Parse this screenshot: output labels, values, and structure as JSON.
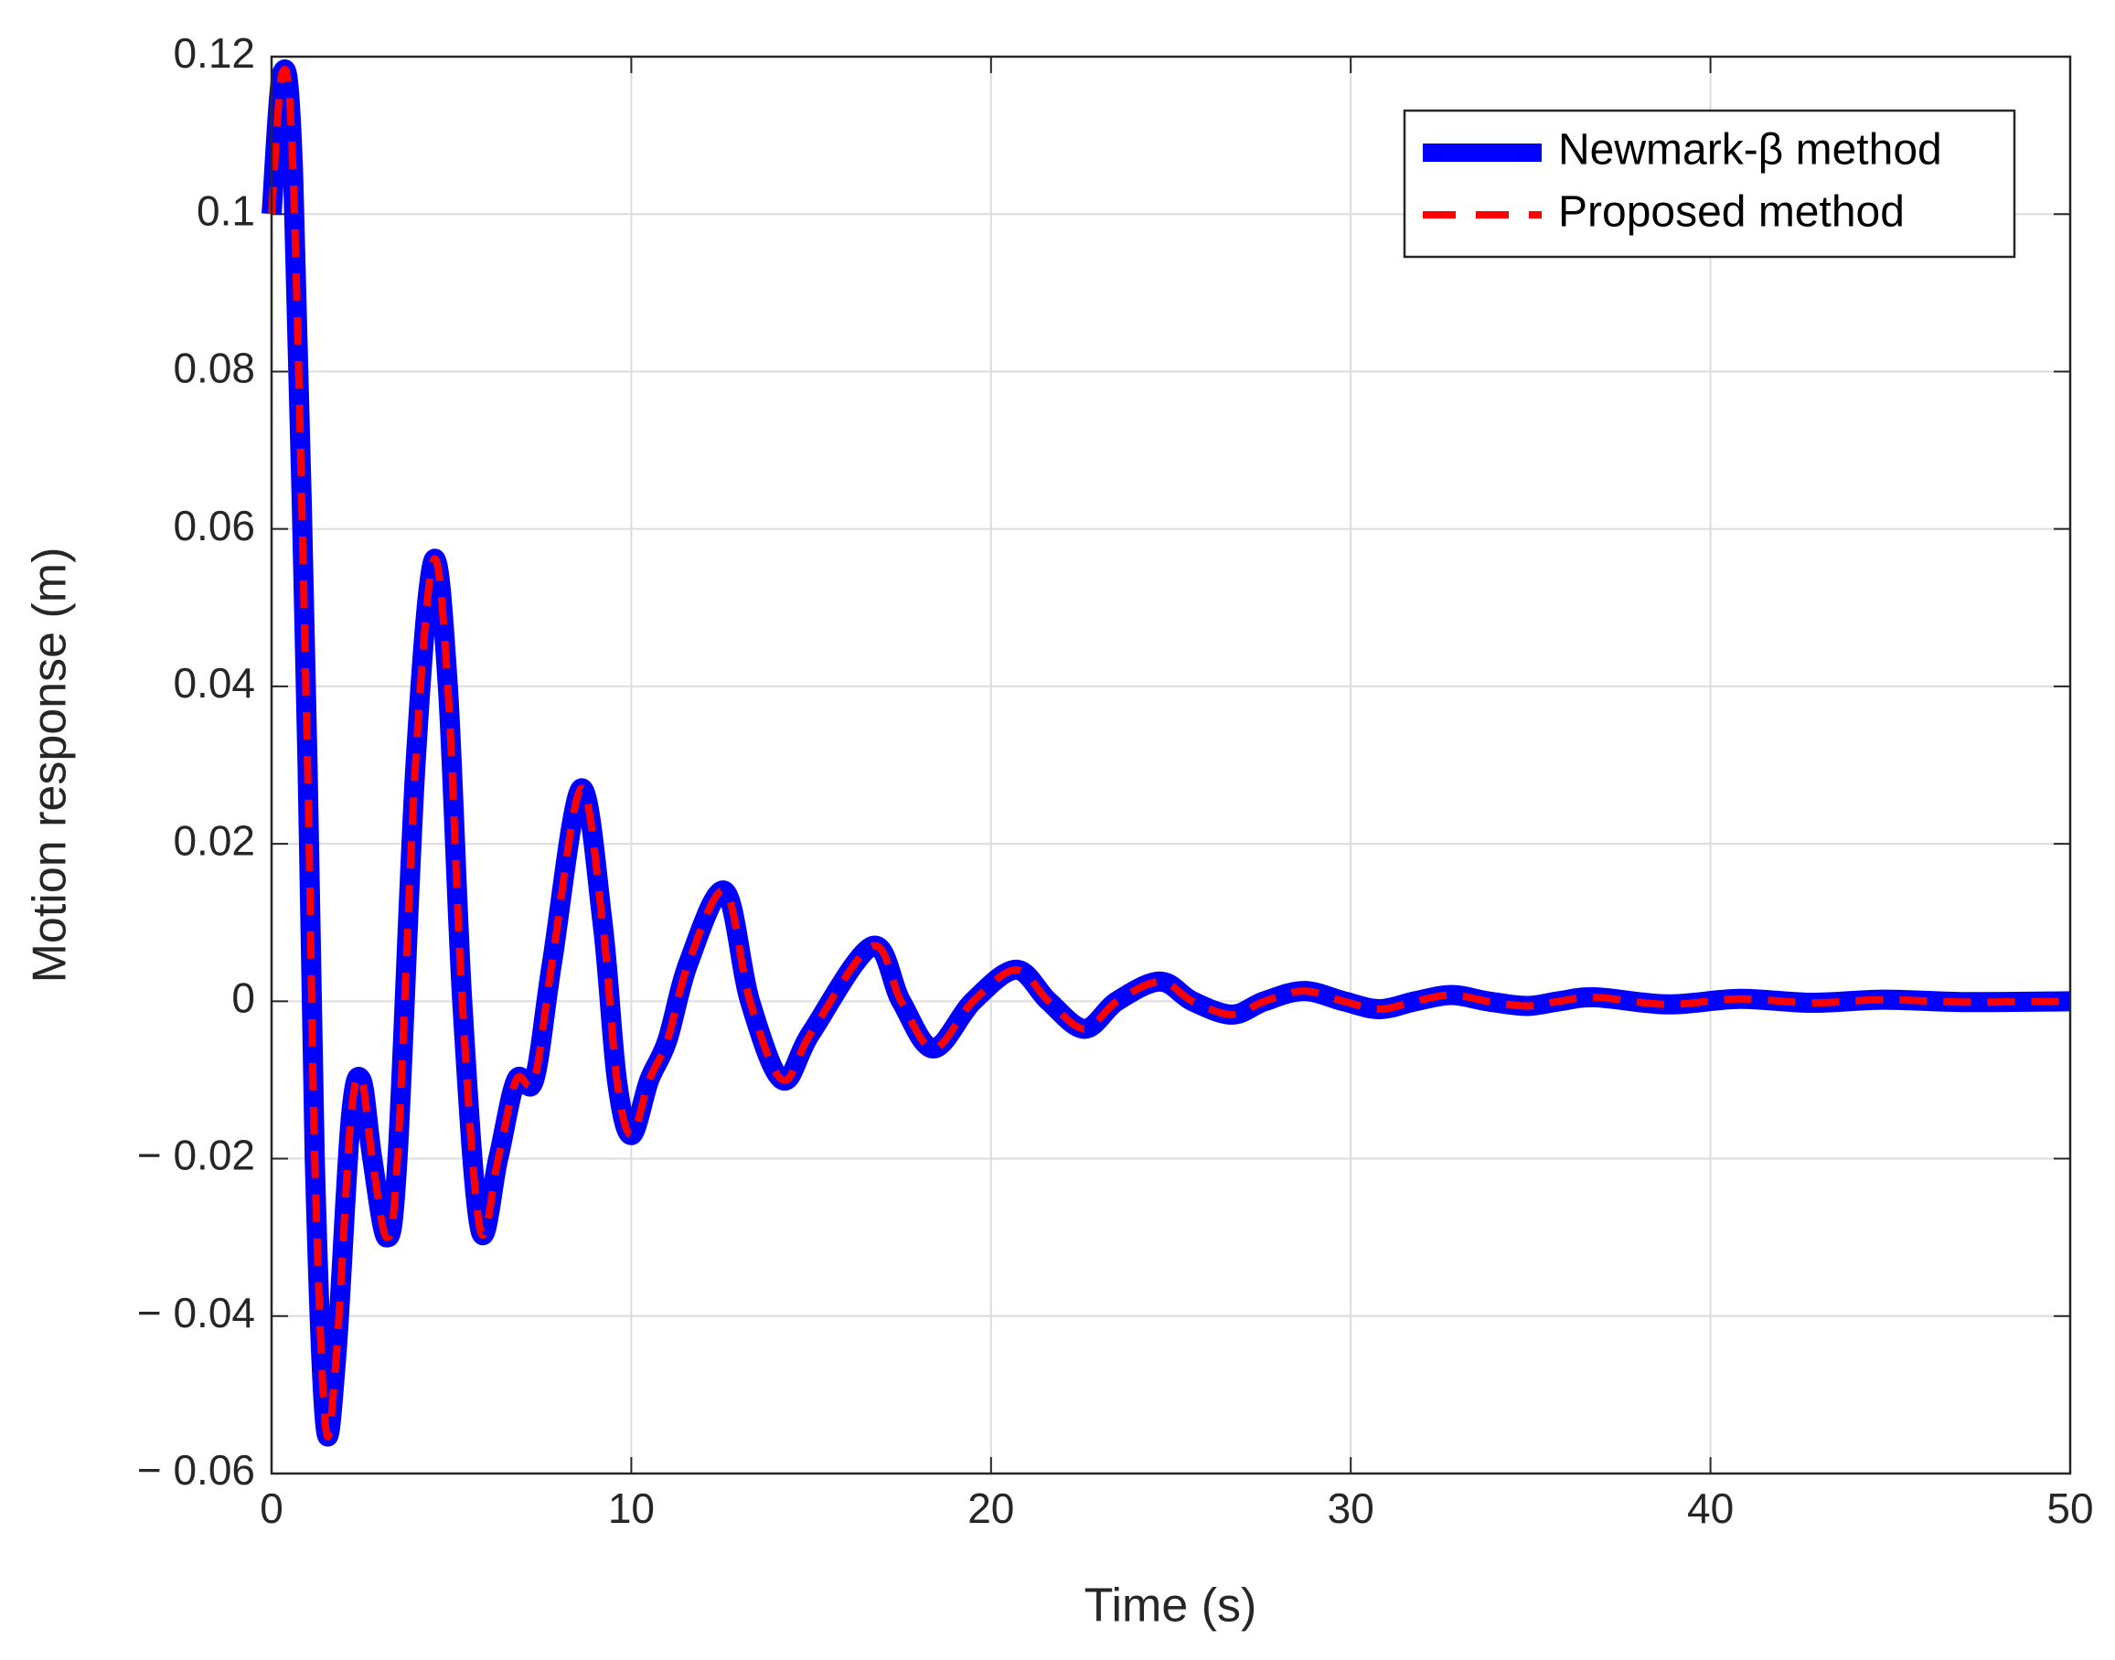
{
  "chart_data": {
    "type": "line",
    "xlabel": "Time (s)",
    "ylabel": "Motion response (m)",
    "x": [
      0,
      0.3,
      0.6,
      1.0,
      1.2,
      1.5,
      1.8,
      2.2,
      2.5,
      2.8,
      3.2,
      3.5,
      4.0,
      4.5,
      4.9,
      5.3,
      5.8,
      6.3,
      6.8,
      7.3,
      7.8,
      8.6,
      9.2,
      9.6,
      10.0,
      10.5,
      11.0,
      11.6,
      12.6,
      13.3,
      14.2,
      15.0,
      16.7,
      17.5,
      18.4,
      19.5,
      20.7,
      21.6,
      22.6,
      23.5,
      24.7,
      25.6,
      26.7,
      27.6,
      28.7,
      29.8,
      30.8,
      31.8,
      32.8,
      33.8,
      34.9,
      35.8,
      36.8,
      38.8,
      40.8,
      42.8,
      44.8,
      47,
      50
    ],
    "series": [
      {
        "name": "Newmark-β method",
        "color": "#0000ff",
        "dash": false,
        "values": [
          0.1,
          0.118,
          0.105,
          0.03,
          -0.02,
          -0.054,
          -0.045,
          -0.015,
          -0.01,
          -0.02,
          -0.03,
          -0.02,
          0.03,
          0.056,
          0.04,
          0.0,
          -0.029,
          -0.02,
          -0.01,
          -0.01,
          0.005,
          0.027,
          0.01,
          -0.01,
          -0.017,
          -0.01,
          -0.005,
          0.005,
          0.014,
          0.0,
          -0.01,
          -0.004,
          0.007,
          0.0,
          -0.006,
          0.0,
          0.004,
          0.0,
          -0.0035,
          0.0,
          0.0025,
          0.0,
          -0.0017,
          0.0,
          0.0013,
          0.0,
          -0.001,
          0.0,
          0.0008,
          0.0,
          -0.0006,
          0.0,
          0.0005,
          -0.0004,
          0.0003,
          -0.0002,
          0.0002,
          -0.0001,
          0
        ]
      },
      {
        "name": "Proposed method",
        "color": "#ff0000",
        "dash": true,
        "values": [
          0.1,
          0.118,
          0.105,
          0.03,
          -0.02,
          -0.054,
          -0.045,
          -0.015,
          -0.01,
          -0.02,
          -0.03,
          -0.02,
          0.03,
          0.056,
          0.04,
          0.0,
          -0.029,
          -0.02,
          -0.01,
          -0.01,
          0.005,
          0.027,
          0.01,
          -0.01,
          -0.017,
          -0.01,
          -0.005,
          0.005,
          0.014,
          0.0,
          -0.01,
          -0.004,
          0.007,
          0.0,
          -0.006,
          0.0,
          0.004,
          0.0,
          -0.0035,
          0.0,
          0.0025,
          0.0,
          -0.0017,
          0.0,
          0.0013,
          0.0,
          -0.001,
          0.0,
          0.0008,
          0.0,
          -0.0006,
          0.0,
          0.0005,
          -0.0004,
          0.0003,
          -0.0002,
          0.0002,
          -0.0001,
          0
        ]
      }
    ],
    "xlim": [
      0,
      50
    ],
    "xticks": [
      0,
      10,
      20,
      30,
      40,
      50
    ],
    "ylim": [
      -0.06,
      0.12
    ],
    "yticks": [
      {
        "value": -0.06,
        "label": "− 0.06"
      },
      {
        "value": -0.04,
        "label": "− 0.04"
      },
      {
        "value": -0.02,
        "label": "− 0.02"
      },
      0,
      0.02,
      0.04,
      0.06,
      0.08,
      0.1,
      0.12
    ],
    "grid": true,
    "legend": "upper right"
  }
}
